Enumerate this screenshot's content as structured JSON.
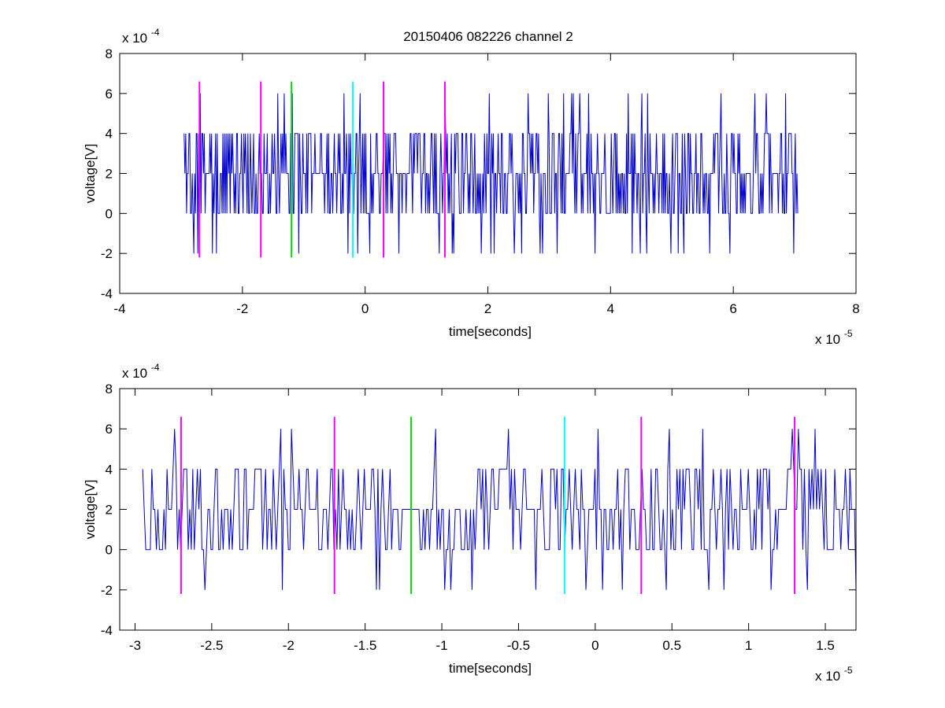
{
  "figure": {
    "title": "20150406 082226 channel 2"
  },
  "chart_data": [
    {
      "type": "line",
      "title": "20150406 082226 channel 2",
      "xlabel": "time[seconds]",
      "ylabel": "voltage[V]",
      "x_exponent_label": "x 10",
      "x_exponent": "-5",
      "y_exponent_label": "x 10",
      "y_exponent": "-4",
      "xlim": [
        -4,
        8
      ],
      "ylim": [
        -4,
        8
      ],
      "xticks": [
        "-4",
        "-2",
        "0",
        "2",
        "4",
        "6",
        "8"
      ],
      "yticks": [
        "-4",
        "-2",
        "0",
        "2",
        "4",
        "6",
        "8"
      ],
      "grid": false,
      "signal": {
        "color": "#0000cc",
        "x_start": -2.95,
        "x_end": 7.05,
        "y_levels": [
          -2,
          0,
          2,
          4,
          6
        ],
        "y_range": [
          -2,
          6
        ]
      },
      "markers": [
        {
          "x": -2.7,
          "color": "#ff00ff",
          "y_range": [
            -2.2,
            6.6
          ]
        },
        {
          "x": -1.7,
          "color": "#ff00ff",
          "y_range": [
            -2.2,
            6.6
          ]
        },
        {
          "x": -1.2,
          "color": "#00dd00",
          "y_range": [
            -2.2,
            6.6
          ]
        },
        {
          "x": -0.2,
          "color": "#00ffff",
          "y_range": [
            -2.2,
            6.6
          ]
        },
        {
          "x": 0.3,
          "color": "#ff00ff",
          "y_range": [
            -2.2,
            6.6
          ]
        },
        {
          "x": 1.3,
          "color": "#ff00ff",
          "y_range": [
            -2.2,
            6.6
          ]
        }
      ]
    },
    {
      "type": "line",
      "title": "",
      "xlabel": "time[seconds]",
      "ylabel": "voltage[V]",
      "x_exponent_label": "x 10",
      "x_exponent": "-5",
      "y_exponent_label": "x 10",
      "y_exponent": "-4",
      "xlim": [
        -3.1,
        1.7
      ],
      "ylim": [
        -4,
        8
      ],
      "xticks": [
        "-3",
        "-2.5",
        "-2",
        "-1.5",
        "-1",
        "-0.5",
        "0",
        "0.5",
        "1",
        "1.5"
      ],
      "xtick_values": [
        -3,
        -2.5,
        -2,
        -1.5,
        -1,
        -0.5,
        0,
        0.5,
        1,
        1.5
      ],
      "yticks": [
        "-4",
        "-2",
        "0",
        "2",
        "4",
        "6",
        "8"
      ],
      "grid": false,
      "signal": {
        "color": "#0000cc",
        "x_start": -2.95,
        "x_end": 1.7,
        "y_levels": [
          -2,
          0,
          2,
          4,
          6
        ],
        "y_range": [
          -2,
          6
        ]
      },
      "markers": [
        {
          "x": -2.7,
          "color": "#ff00ff",
          "y_range": [
            -2.2,
            6.6
          ]
        },
        {
          "x": -1.7,
          "color": "#ff00ff",
          "y_range": [
            -2.2,
            6.6
          ]
        },
        {
          "x": -1.2,
          "color": "#00dd00",
          "y_range": [
            -2.2,
            6.6
          ]
        },
        {
          "x": -0.2,
          "color": "#00ffff",
          "y_range": [
            -2.2,
            6.6
          ]
        },
        {
          "x": 0.3,
          "color": "#ff00ff",
          "y_range": [
            -2.2,
            6.6
          ]
        },
        {
          "x": 1.3,
          "color": "#ff00ff",
          "y_range": [
            -2.2,
            6.6
          ]
        }
      ]
    }
  ]
}
